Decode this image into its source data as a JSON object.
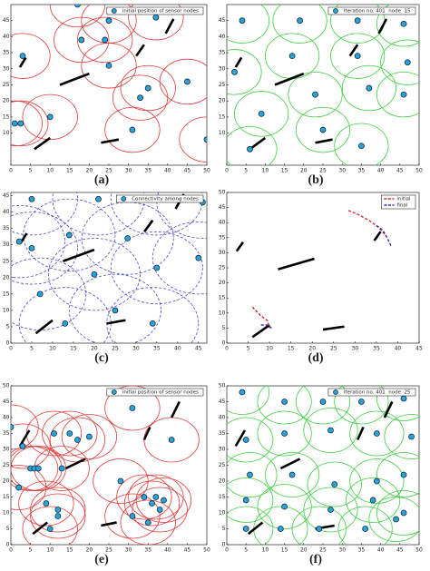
{
  "chart_data": [
    {
      "type": "scatter",
      "panel_label": "(a)",
      "xlim": [
        0,
        50
      ],
      "ylim": [
        0,
        50
      ],
      "xticks": [
        0,
        5,
        10,
        15,
        20,
        25,
        30,
        35,
        40,
        45,
        50
      ],
      "yticks": [
        10,
        15,
        20,
        25,
        30,
        35,
        40,
        45
      ],
      "sensing_radius": 7,
      "circle_color": "#e23a3a",
      "circle_style": "solid",
      "series": [
        {
          "name": "initial position of sensor nodes",
          "color": "#2ba3d8",
          "x": [
            17,
            18,
            25,
            24,
            3,
            25,
            33,
            35,
            45,
            1,
            2.5,
            10,
            31,
            50,
            37
          ],
          "values": [
            50,
            39,
            45,
            39,
            34,
            31,
            21,
            24,
            26,
            13,
            13,
            15,
            11,
            8,
            46
          ]
        }
      ],
      "obstacles": [
        {
          "x": [
            2.3,
            3.8
          ],
          "y": [
            30.5,
            33.5
          ]
        },
        {
          "x": [
            12.5,
            20
          ],
          "y": [
            25,
            28.5
          ]
        },
        {
          "x": [
            32,
            34
          ],
          "y": [
            34,
            37.5
          ]
        },
        {
          "x": [
            39.5,
            41.5
          ],
          "y": [
            41,
            45.5
          ]
        },
        {
          "x": [
            6,
            10
          ],
          "y": [
            5,
            8.5
          ]
        },
        {
          "x": [
            23,
            27.5
          ],
          "y": [
            7,
            8
          ]
        }
      ]
    },
    {
      "type": "scatter",
      "panel_label": "(b)",
      "xlim": [
        0,
        50
      ],
      "ylim": [
        0,
        50
      ],
      "xticks": [
        0,
        5,
        10,
        15,
        20,
        25,
        30,
        35,
        40,
        45,
        50
      ],
      "yticks": [
        10,
        15,
        20,
        25,
        30,
        35,
        40,
        45
      ],
      "sensing_radius": 7,
      "circle_color": "#3fcf3f",
      "circle_style": "solid",
      "series": [
        {
          "name": "Iteration no. 401  node  15",
          "color": "#2ba3d8",
          "x": [
            4,
            19,
            34,
            46,
            2,
            17,
            34,
            47,
            23,
            46,
            37,
            9,
            25,
            6,
            35
          ],
          "values": [
            45,
            45,
            45,
            44,
            29,
            34,
            34,
            32,
            22,
            22,
            24,
            16,
            11,
            5,
            6
          ]
        }
      ],
      "obstacles": [
        {
          "x": [
            2.3,
            3.8
          ],
          "y": [
            30.5,
            33.5
          ]
        },
        {
          "x": [
            12.5,
            20
          ],
          "y": [
            25,
            28.5
          ]
        },
        {
          "x": [
            32,
            34
          ],
          "y": [
            34,
            37.5
          ]
        },
        {
          "x": [
            39.5,
            41.5
          ],
          "y": [
            41,
            45.5
          ]
        },
        {
          "x": [
            6,
            10
          ],
          "y": [
            5,
            8.5
          ]
        },
        {
          "x": [
            23,
            27.5
          ],
          "y": [
            7,
            8
          ]
        }
      ]
    },
    {
      "type": "scatter",
      "panel_label": "(c)",
      "xlim": [
        0,
        47
      ],
      "ylim": [
        0,
        46
      ],
      "xticks": [
        0,
        5,
        10,
        15,
        20,
        25,
        30,
        35,
        40,
        45
      ],
      "yticks": [
        0,
        5,
        10,
        15,
        20,
        25,
        30,
        35,
        40,
        45
      ],
      "sensing_radius": 11,
      "circle_color": "#4a4ad0",
      "circle_style": "dashed",
      "series": [
        {
          "name": "Connectivity among nodes",
          "color": "#2ba3d8",
          "x": [
            5,
            21,
            35,
            46,
            14,
            28,
            5,
            45,
            35,
            20,
            7,
            25,
            13,
            34,
            2
          ],
          "values": [
            44,
            44,
            44,
            43,
            33,
            32,
            29,
            26,
            23,
            21,
            15,
            10,
            6,
            6,
            31
          ]
        }
      ],
      "obstacles": [
        {
          "x": [
            2.3,
            3.8
          ],
          "y": [
            30.5,
            33.5
          ]
        },
        {
          "x": [
            12.5,
            20
          ],
          "y": [
            25,
            28.5
          ]
        },
        {
          "x": [
            32,
            34
          ],
          "y": [
            34,
            37.5
          ]
        },
        {
          "x": [
            39.5,
            41.5
          ],
          "y": [
            41,
            45.5
          ]
        },
        {
          "x": [
            6,
            10
          ],
          "y": [
            3,
            7
          ]
        },
        {
          "x": [
            23,
            27.5
          ],
          "y": [
            6,
            7
          ]
        }
      ]
    },
    {
      "type": "line",
      "panel_label": "(d)",
      "xlim": [
        0,
        45
      ],
      "ylim": [
        0,
        50
      ],
      "xticks": [
        0,
        5,
        10,
        15,
        20,
        25,
        30,
        35,
        40,
        45
      ],
      "yticks": [
        0,
        5,
        10,
        15,
        20,
        25,
        30,
        35,
        40,
        45,
        50
      ],
      "series": [
        {
          "name": "initial",
          "color": "#d62828",
          "x": [
            28.5,
            31,
            33.5,
            35.5,
            37,
            null,
            6,
            8,
            9.5,
            10
          ],
          "values": [
            44,
            42.5,
            40.5,
            38.5,
            36,
            null,
            12,
            9,
            7.5,
            5
          ]
        },
        {
          "name": "final",
          "color": "#2a2ab8",
          "x": [
            35,
            36.5,
            37.5,
            38.5,
            null,
            8,
            9.5,
            10.5
          ],
          "values": [
            39,
            37.5,
            35,
            32,
            null,
            6,
            6,
            5
          ]
        }
      ],
      "obstacles": [
        {
          "x": [
            2.3,
            3.8
          ],
          "y": [
            30.5,
            33.5
          ]
        },
        {
          "x": [
            12,
            20.5
          ],
          "y": [
            24.5,
            28
          ]
        },
        {
          "x": [
            34.5,
            36
          ],
          "y": [
            34,
            37
          ]
        },
        {
          "x": [
            6,
            10
          ],
          "y": [
            2,
            6
          ]
        },
        {
          "x": [
            22.5,
            27.5
          ],
          "y": [
            4.5,
            5.5
          ]
        }
      ]
    },
    {
      "type": "scatter",
      "panel_label": "(e)",
      "xlim": [
        0,
        50
      ],
      "ylim": [
        0,
        50
      ],
      "xticks": [
        0,
        5,
        10,
        15,
        20,
        25,
        30,
        35,
        40,
        45,
        50
      ],
      "yticks": [
        0,
        5,
        10,
        15,
        20,
        25,
        30,
        35,
        40,
        45,
        50
      ],
      "sensing_radius": 7,
      "circle_color": "#e23a3a",
      "circle_style": "solid",
      "series": [
        {
          "name": "initial position of sensor nodes",
          "color": "#2ba3d8",
          "x": [
            0,
            11,
            15,
            17,
            20,
            3,
            5,
            6,
            7,
            13,
            2,
            28,
            9,
            12,
            12,
            41,
            34,
            37,
            39,
            36,
            38,
            31,
            35,
            10,
            31
          ],
          "values": [
            37,
            35,
            35,
            33,
            34,
            31,
            24,
            24,
            24,
            24,
            18,
            20,
            13,
            11,
            9,
            33,
            15,
            15,
            14,
            13,
            11,
            9,
            7,
            5,
            43
          ]
        }
      ],
      "obstacles": [
        {
          "x": [
            2.3,
            4.7
          ],
          "y": [
            31,
            36
          ]
        },
        {
          "x": [
            14,
            19
          ],
          "y": [
            24,
            27
          ]
        },
        {
          "x": [
            34,
            35.5
          ],
          "y": [
            33,
            37
          ]
        },
        {
          "x": [
            41,
            43
          ],
          "y": [
            40,
            45
          ]
        },
        {
          "x": [
            5.6,
            9.3
          ],
          "y": [
            3.4,
            7
          ]
        },
        {
          "x": [
            23,
            27
          ],
          "y": [
            6,
            7
          ]
        }
      ]
    },
    {
      "type": "scatter",
      "panel_label": "(f)",
      "xlim": [
        0,
        50
      ],
      "ylim": [
        0,
        50
      ],
      "xticks": [
        0,
        5,
        10,
        15,
        20,
        25,
        30,
        35,
        40,
        45,
        50
      ],
      "yticks": [
        0,
        5,
        10,
        15,
        20,
        25,
        30,
        35,
        40,
        45,
        50
      ],
      "sensing_radius": 7,
      "circle_color": "#3fcf3f",
      "circle_style": "solid",
      "series": [
        {
          "name": "Iteration no. 401  node  25",
          "color": "#2ba3d8",
          "x": [
            4,
            15,
            25,
            35,
            46,
            5,
            15,
            27,
            39,
            48,
            6,
            17,
            28,
            39,
            46,
            5,
            15,
            27,
            38,
            46,
            5,
            14,
            24,
            36,
            44
          ],
          "values": [
            48,
            45,
            45,
            45,
            46,
            33,
            35,
            36,
            35,
            34,
            22,
            22,
            19,
            20,
            22,
            14,
            12,
            11,
            14,
            10,
            5,
            5,
            5,
            5,
            8
          ]
        }
      ],
      "obstacles": [
        {
          "x": [
            2.3,
            4.7
          ],
          "y": [
            31,
            36
          ]
        },
        {
          "x": [
            14,
            19
          ],
          "y": [
            24,
            27
          ]
        },
        {
          "x": [
            34,
            35.5
          ],
          "y": [
            33,
            37
          ]
        },
        {
          "x": [
            41,
            43
          ],
          "y": [
            40,
            45
          ]
        },
        {
          "x": [
            5.6,
            9.3
          ],
          "y": [
            3.4,
            7
          ]
        },
        {
          "x": [
            23,
            28
          ],
          "y": [
            5,
            6
          ]
        }
      ]
    }
  ]
}
